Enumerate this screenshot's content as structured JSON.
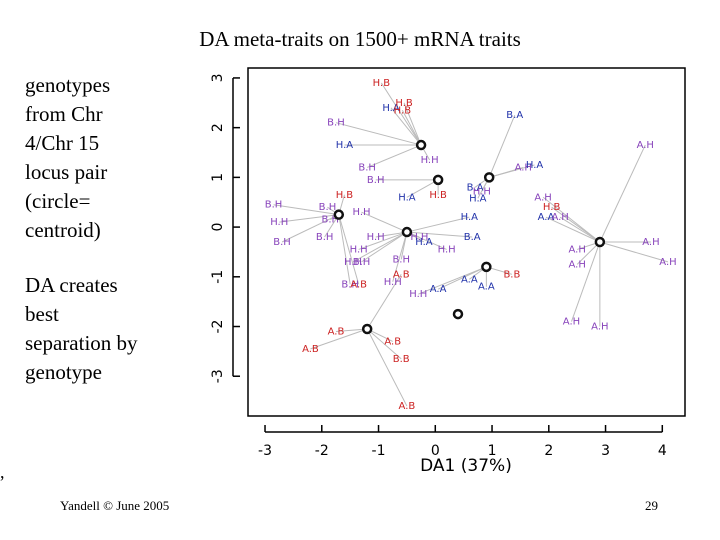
{
  "slide": {
    "title": "DA meta-traits on 1500+ mRNA traits",
    "text_block_1": "genotypes\nfrom Chr\n4/Chr 15\nlocus pair\n(circle=\ncentroid)",
    "text_block_2": "DA creates\nbest\nseparation by\ngenotype",
    "footer_left": "Yandell © June 2005",
    "footer_right": "29",
    "stray_mark": ","
  },
  "colors": {
    "red": "#cc2222",
    "blue": "#2233aa",
    "purple": "#8844bb",
    "line": "#bbbbbb",
    "axis": "#000000"
  },
  "chart_data": {
    "type": "scatter",
    "title": "",
    "xlabel": "DA1 (37%)",
    "ylabel": "",
    "xlim": [
      -3.3,
      4.4
    ],
    "ylim": [
      -3.8,
      3.2
    ],
    "xticks": [
      -3,
      -2,
      -1,
      0,
      1,
      2,
      3,
      4
    ],
    "yticks": [
      3,
      2,
      1,
      0,
      -1,
      -2,
      -3
    ],
    "centroids": [
      {
        "id": "c1",
        "x": -0.25,
        "y": 1.65
      },
      {
        "id": "c2",
        "x": 0.05,
        "y": 0.95
      },
      {
        "id": "c3",
        "x": 0.95,
        "y": 1.0
      },
      {
        "id": "c4",
        "x": -1.7,
        "y": 0.25
      },
      {
        "id": "c5",
        "x": -0.5,
        "y": -0.1
      },
      {
        "id": "c6",
        "x": 2.9,
        "y": -0.3
      },
      {
        "id": "c7",
        "x": 0.9,
        "y": -0.8
      },
      {
        "id": "c8",
        "x": 0.4,
        "y": -1.75
      },
      {
        "id": "c9",
        "x": -1.2,
        "y": -2.05
      }
    ],
    "points": [
      {
        "label": "H.B",
        "x": -0.95,
        "y": 2.9,
        "color": "red",
        "c": "c1"
      },
      {
        "label": "H.A",
        "x": -0.78,
        "y": 2.4,
        "color": "blue",
        "c": "c1"
      },
      {
        "label": "H.B",
        "x": -0.55,
        "y": 2.5,
        "color": "red",
        "c": "c1"
      },
      {
        "label": "H.B",
        "x": -0.58,
        "y": 2.35,
        "color": "red",
        "c": "c1"
      },
      {
        "label": "B.H",
        "x": -1.75,
        "y": 2.1,
        "color": "purple",
        "c": "c1"
      },
      {
        "label": "H.A",
        "x": -1.6,
        "y": 1.65,
        "color": "blue",
        "c": "c1"
      },
      {
        "label": "H.H",
        "x": -0.1,
        "y": 1.35,
        "color": "purple",
        "c": "c1"
      },
      {
        "label": "B.H",
        "x": -1.2,
        "y": 1.2,
        "color": "purple",
        "c": "c1"
      },
      {
        "label": "B.H",
        "x": -1.05,
        "y": 0.95,
        "color": "purple",
        "c": "c2"
      },
      {
        "label": "H.B",
        "x": -1.6,
        "y": 0.65,
        "color": "red",
        "c": "c4"
      },
      {
        "label": "H.A",
        "x": -0.5,
        "y": 0.6,
        "color": "blue",
        "c": "c2"
      },
      {
        "label": "H.B",
        "x": 0.05,
        "y": 0.65,
        "color": "red",
        "c": "c2"
      },
      {
        "label": "B.A",
        "x": 0.7,
        "y": 0.8,
        "color": "blue",
        "c": "c3"
      },
      {
        "label": "H.H",
        "x": 0.82,
        "y": 0.72,
        "color": "purple",
        "c": "c3"
      },
      {
        "label": "H.A",
        "x": 0.75,
        "y": 0.58,
        "color": "blue",
        "c": "c3"
      },
      {
        "label": "B.A",
        "x": 1.4,
        "y": 2.25,
        "color": "blue",
        "c": "c3"
      },
      {
        "label": "A.H",
        "x": 1.55,
        "y": 1.2,
        "color": "purple",
        "c": "c3"
      },
      {
        "label": "H.A",
        "x": 1.75,
        "y": 1.25,
        "color": "blue",
        "c": "c3"
      },
      {
        "label": "A.H",
        "x": 3.7,
        "y": 1.65,
        "color": "purple",
        "c": "c6"
      },
      {
        "label": "A.H",
        "x": 1.9,
        "y": 0.6,
        "color": "purple",
        "c": "c6"
      },
      {
        "label": "H.B",
        "x": 2.05,
        "y": 0.4,
        "color": "red",
        "c": "c6"
      },
      {
        "label": "A.A",
        "x": 1.95,
        "y": 0.2,
        "color": "blue",
        "c": "c6"
      },
      {
        "label": "A.H",
        "x": 2.2,
        "y": 0.2,
        "color": "purple",
        "c": "c6"
      },
      {
        "label": "A.H",
        "x": 2.5,
        "y": -0.45,
        "color": "purple",
        "c": "c6"
      },
      {
        "label": "A.H",
        "x": 2.5,
        "y": -0.75,
        "color": "purple",
        "c": "c6"
      },
      {
        "label": "A.H",
        "x": 3.8,
        "y": -0.3,
        "color": "purple",
        "c": "c6"
      },
      {
        "label": "A.H",
        "x": 4.1,
        "y": -0.7,
        "color": "purple",
        "c": "c6"
      },
      {
        "label": "A.H",
        "x": 2.4,
        "y": -1.9,
        "color": "purple",
        "c": "c6"
      },
      {
        "label": "A.H",
        "x": 2.9,
        "y": -2.0,
        "color": "purple",
        "c": "c6"
      },
      {
        "label": "B.H",
        "x": -2.85,
        "y": 0.45,
        "color": "purple",
        "c": "c4"
      },
      {
        "label": "H.H",
        "x": -2.75,
        "y": 0.1,
        "color": "purple",
        "c": "c4"
      },
      {
        "label": "B.H",
        "x": -2.7,
        "y": -0.3,
        "color": "purple",
        "c": "c4"
      },
      {
        "label": "B.H",
        "x": -1.9,
        "y": 0.4,
        "color": "purple",
        "c": "c4"
      },
      {
        "label": "B.H",
        "x": -1.85,
        "y": 0.15,
        "color": "purple",
        "c": "c4"
      },
      {
        "label": "H.H",
        "x": -1.3,
        "y": 0.3,
        "color": "purple",
        "c": "c5"
      },
      {
        "label": "B.H",
        "x": -1.95,
        "y": -0.2,
        "color": "purple",
        "c": "c4"
      },
      {
        "label": "H.H",
        "x": -1.05,
        "y": -0.2,
        "color": "purple",
        "c": "c5"
      },
      {
        "label": "H.H",
        "x": -1.35,
        "y": -0.45,
        "color": "purple",
        "c": "c5"
      },
      {
        "label": "H.H",
        "x": -1.45,
        "y": -0.7,
        "color": "purple",
        "c": "c5"
      },
      {
        "label": "B.H",
        "x": -1.3,
        "y": -0.7,
        "color": "purple",
        "c": "c5"
      },
      {
        "label": "B.H",
        "x": -1.5,
        "y": -1.15,
        "color": "purple",
        "c": "c4"
      },
      {
        "label": "A.B",
        "x": -1.35,
        "y": -1.15,
        "color": "red",
        "c": "c4"
      },
      {
        "label": "B.H",
        "x": -0.6,
        "y": -0.65,
        "color": "purple",
        "c": "c5"
      },
      {
        "label": "H.H",
        "x": -0.75,
        "y": -1.1,
        "color": "purple",
        "c": "c5"
      },
      {
        "label": "A.B",
        "x": -0.6,
        "y": -0.95,
        "color": "red",
        "c": "c9"
      },
      {
        "label": "H.H",
        "x": -0.28,
        "y": -0.2,
        "color": "purple",
        "c": "c5"
      },
      {
        "label": "H.A",
        "x": -0.2,
        "y": -0.3,
        "color": "blue",
        "c": "c5"
      },
      {
        "label": "H.H",
        "x": 0.2,
        "y": -0.45,
        "color": "purple",
        "c": "c5"
      },
      {
        "label": "H.A",
        "x": 0.6,
        "y": 0.2,
        "color": "blue",
        "c": "c5"
      },
      {
        "label": "B.A",
        "x": 0.65,
        "y": -0.2,
        "color": "blue",
        "c": "c5"
      },
      {
        "label": "H.H",
        "x": -0.3,
        "y": -1.35,
        "color": "purple",
        "c": "c7"
      },
      {
        "label": "A.A",
        "x": 0.05,
        "y": -1.25,
        "color": "blue",
        "c": "c7"
      },
      {
        "label": "A.A",
        "x": 0.6,
        "y": -1.05,
        "color": "blue",
        "c": "c7"
      },
      {
        "label": "A.A",
        "x": 0.9,
        "y": -1.2,
        "color": "blue",
        "c": "c7"
      },
      {
        "label": "B.B",
        "x": 1.35,
        "y": -0.95,
        "color": "red",
        "c": "c7"
      },
      {
        "label": "A.B",
        "x": -1.75,
        "y": -2.1,
        "color": "red",
        "c": "c9"
      },
      {
        "label": "A.B",
        "x": -2.2,
        "y": -2.45,
        "color": "red",
        "c": "c9"
      },
      {
        "label": "A.B",
        "x": -0.75,
        "y": -2.3,
        "color": "red",
        "c": "c9"
      },
      {
        "label": "B.B",
        "x": -0.6,
        "y": -2.65,
        "color": "red",
        "c": "c9"
      },
      {
        "label": "A.B",
        "x": -0.5,
        "y": -3.6,
        "color": "red",
        "c": "c9"
      }
    ]
  }
}
